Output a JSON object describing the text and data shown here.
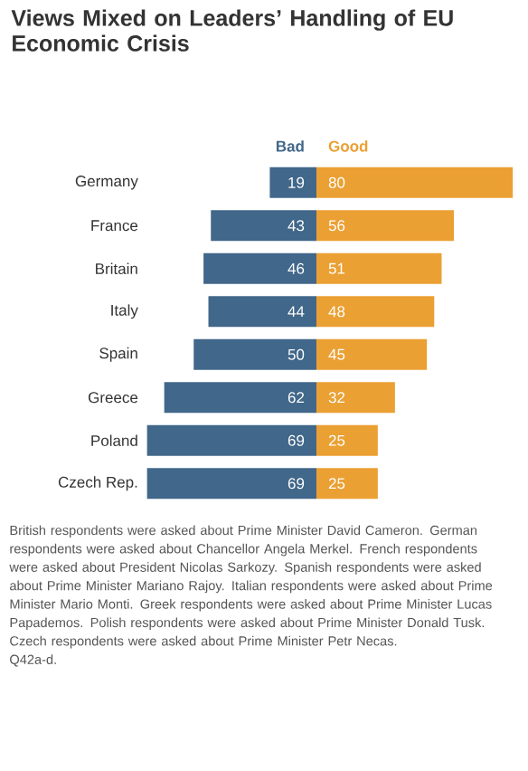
{
  "chart_data": [
    {
      "type": "bar",
      "orientation": "horizontal",
      "title": "Views Mixed on Leaders’ Handling of EU Economic Crisis",
      "categories": [
        "Germany",
        "France",
        "Britain",
        "Italy",
        "Spain",
        "Greece",
        "Poland",
        "Czech Rep."
      ],
      "xlim": [
        70,
        0
      ],
      "tick_labels": "y",
      "data_labels": true,
      "series": [
        {
          "name": "Bad",
          "color": "#41678a",
          "values": [
            19,
            43,
            46,
            44,
            50,
            62,
            69,
            69
          ]
        }
      ],
      "annotations": [
        "British respondents were asked about Prime Minister David Cameron. German respondents were asked about Chancellor Angela Merkel. French respondents were asked about President Nicolas Sarkozy. Spanish respondents were asked about Prime Minister Mariano Rajoy. Italian respondents were asked about Prime Minister Mario Monti. Greek respondents were asked about Prime Minister Lucas Papademos. Polish respondents were asked about Prime Minister Donald Tusk. Czech respondents were asked about Prime Minister Petr Necas.",
        "Q42a-d."
      ]
    },
    {
      "type": "bar",
      "orientation": "horizontal",
      "categories": [
        null,
        null,
        null,
        null,
        null,
        null,
        null,
        null
      ],
      "xlim": [
        0,
        81
      ],
      "tick_labels": false,
      "data_labels": true,
      "series": [
        {
          "name": "Good",
          "color": "#eba033",
          "values": [
            80,
            56,
            51,
            48,
            45,
            32,
            25,
            25
          ]
        }
      ]
    }
  ]
}
